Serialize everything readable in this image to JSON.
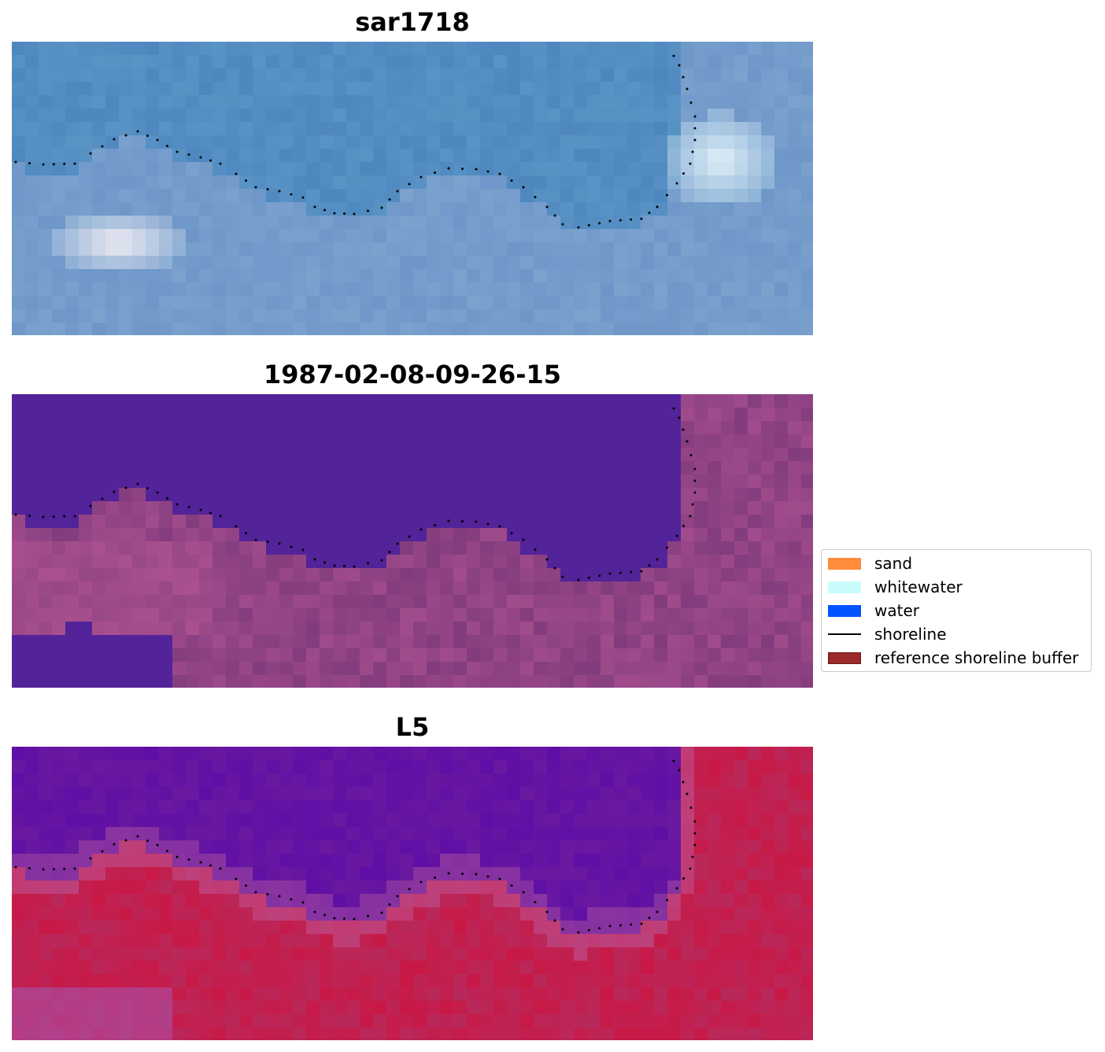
{
  "panels": [
    {
      "title": "sar1718",
      "style": "rgb"
    },
    {
      "title": "1987-02-08-09-26-15",
      "style": "classified"
    },
    {
      "title": "L5",
      "style": "index"
    }
  ],
  "legend": {
    "items": [
      {
        "label": "sand",
        "color": "#ff8c3a",
        "kind": "patch"
      },
      {
        "label": "whitewater",
        "color": "#c8fcfc",
        "kind": "patch"
      },
      {
        "label": "water",
        "color": "#0055ff",
        "kind": "patch"
      },
      {
        "label": "shoreline",
        "color": "#000000",
        "kind": "line"
      },
      {
        "label": "reference shoreline buffer",
        "color": "#9b2a2a",
        "kind": "patch"
      }
    ]
  },
  "colors": {
    "classified_water": "#532399",
    "classified_land": "#a14f8e",
    "index_low": "#5a0aa8",
    "index_high": "#c8103c",
    "rgb_water": "#4f86be",
    "rgb_white": "#f6f4f4"
  }
}
